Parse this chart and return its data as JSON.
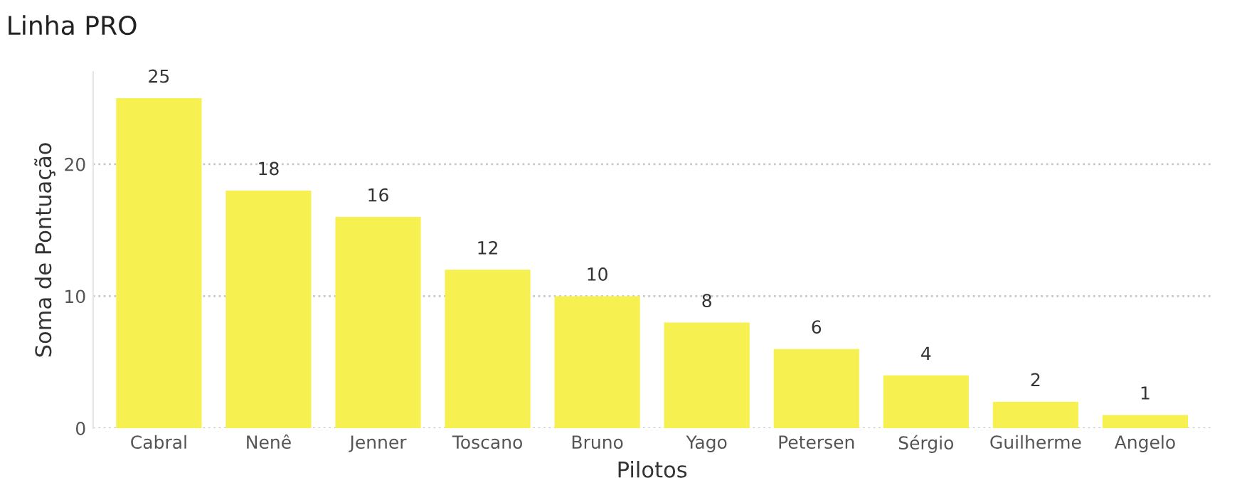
{
  "chart_data": {
    "type": "bar",
    "title": "Linha PRO",
    "xlabel": "Pilotos",
    "ylabel": "Soma de Pontuação",
    "categories": [
      "Cabral",
      "Nenê",
      "Jenner",
      "Toscano",
      "Bruno",
      "Yago",
      "Petersen",
      "Sérgio",
      "Guilherme",
      "Angelo"
    ],
    "values": [
      25,
      18,
      16,
      12,
      10,
      8,
      6,
      4,
      2,
      1
    ],
    "color": "#f6f050",
    "ylim": [
      0,
      27
    ],
    "yticks": [
      0,
      10,
      20
    ],
    "grid": "y",
    "data_labels": true,
    "legend": false
  }
}
